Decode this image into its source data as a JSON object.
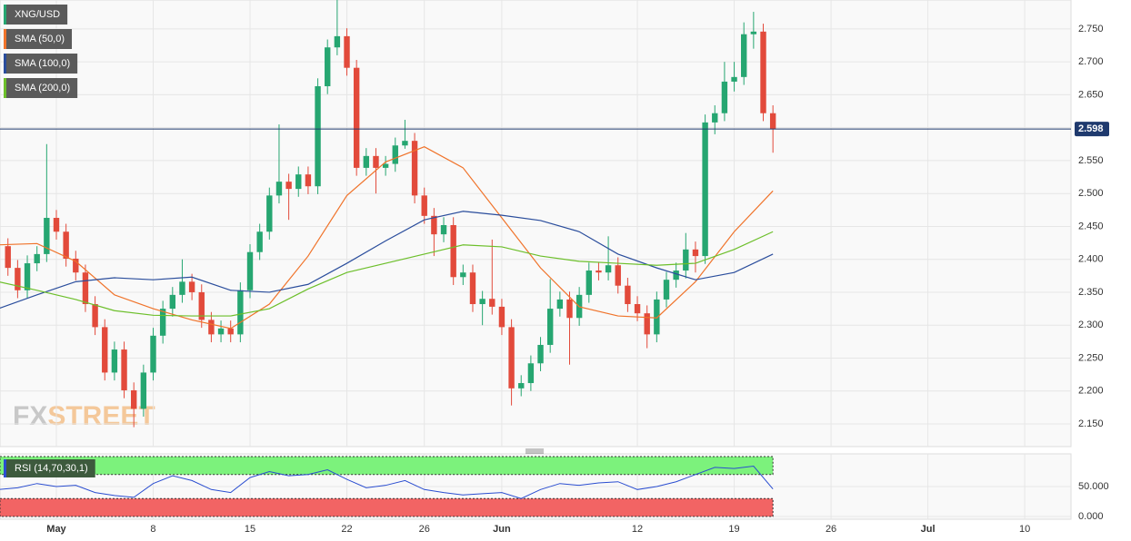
{
  "chart_data": [
    {
      "type": "candlestick",
      "name": "XNG/USD",
      "up_color": "#26a671",
      "down_color": "#e24a3b",
      "watermark": [
        "FX",
        "STREET"
      ],
      "x": [
        -2.5,
        -2,
        -1.5,
        -1,
        -0.5,
        0,
        0.5,
        1,
        1.5,
        2,
        2.5,
        3,
        3.5,
        4,
        4.5,
        5,
        5.5,
        6,
        6.5,
        7,
        7.5,
        8,
        8.5,
        9,
        9.5,
        10,
        10.5,
        11,
        11.5,
        12,
        12.5,
        13,
        13.5,
        14,
        14.5,
        15,
        15.5,
        16,
        16.5,
        17,
        17.5,
        18,
        18.5,
        19,
        19.5,
        20,
        20.5,
        21,
        21.5,
        22,
        22.5,
        23,
        23.5,
        24,
        24.5,
        25,
        25.5,
        26,
        26.5,
        27,
        27.5,
        28,
        28.5,
        29,
        29.5,
        30,
        30.5,
        31,
        31.5,
        32,
        32.5,
        33,
        33.5,
        34,
        34.5,
        35,
        35.5,
        36,
        36.5,
        37
      ],
      "open": [
        2.42,
        2.387,
        2.353,
        2.394,
        2.408,
        2.463,
        2.442,
        2.401,
        2.38,
        2.332,
        2.297,
        2.228,
        2.263,
        2.201,
        2.173,
        2.228,
        2.284,
        2.325,
        2.346,
        2.366,
        2.35,
        2.308,
        2.286,
        2.295,
        2.286,
        2.353,
        2.411,
        2.442,
        2.497,
        2.518,
        2.507,
        2.529,
        2.511,
        2.663,
        2.722,
        2.739,
        2.691,
        2.539,
        2.557,
        2.539,
        2.545,
        2.573,
        2.58,
        2.497,
        2.466,
        2.438,
        2.452,
        2.373,
        2.38,
        2.332,
        2.34,
        2.328,
        2.297,
        2.204,
        2.212,
        2.242,
        2.27,
        2.325,
        2.339,
        2.311,
        2.346,
        2.383,
        2.38,
        2.391,
        2.36,
        2.332,
        2.318,
        2.286,
        2.339,
        2.369,
        2.383,
        2.415,
        2.405,
        2.608,
        2.622,
        2.67,
        2.677,
        2.742,
        2.746,
        2.622
      ],
      "high": [
        2.432,
        2.399,
        2.406,
        2.42,
        2.575,
        2.475,
        2.454,
        2.413,
        2.392,
        2.344,
        2.309,
        2.275,
        2.275,
        2.213,
        2.24,
        2.296,
        2.337,
        2.358,
        2.4,
        2.378,
        2.362,
        2.32,
        2.307,
        2.307,
        2.365,
        2.423,
        2.454,
        2.509,
        2.605,
        2.53,
        2.541,
        2.541,
        2.675,
        2.734,
        2.794,
        2.751,
        2.703,
        2.569,
        2.569,
        2.557,
        2.585,
        2.612,
        2.592,
        2.509,
        2.478,
        2.464,
        2.464,
        2.392,
        2.392,
        2.352,
        2.43,
        2.34,
        2.309,
        2.224,
        2.254,
        2.282,
        2.37,
        2.351,
        2.351,
        2.358,
        2.395,
        2.395,
        2.435,
        2.403,
        2.372,
        2.344,
        2.33,
        2.351,
        2.381,
        2.395,
        2.44,
        2.427,
        2.62,
        2.634,
        2.7,
        2.7,
        2.76,
        2.776,
        2.758,
        2.634
      ],
      "low": [
        2.375,
        2.341,
        2.341,
        2.382,
        2.396,
        2.43,
        2.389,
        2.368,
        2.32,
        2.285,
        2.216,
        2.216,
        2.189,
        2.145,
        2.161,
        2.216,
        2.272,
        2.313,
        2.334,
        2.338,
        2.296,
        2.274,
        2.274,
        2.274,
        2.274,
        2.341,
        2.399,
        2.43,
        2.485,
        2.46,
        2.495,
        2.499,
        2.499,
        2.651,
        2.71,
        2.679,
        2.527,
        2.527,
        2.5,
        2.527,
        2.533,
        2.568,
        2.485,
        2.454,
        2.405,
        2.426,
        2.361,
        2.361,
        2.32,
        2.3,
        2.316,
        2.285,
        2.178,
        2.192,
        2.2,
        2.23,
        2.258,
        2.313,
        2.24,
        2.299,
        2.334,
        2.368,
        2.368,
        2.348,
        2.32,
        2.306,
        2.265,
        2.274,
        2.327,
        2.357,
        2.371,
        2.38,
        2.393,
        2.59,
        2.61,
        2.655,
        2.665,
        2.72,
        2.61,
        2.562
      ],
      "close": [
        2.387,
        2.353,
        2.394,
        2.408,
        2.463,
        2.442,
        2.401,
        2.38,
        2.332,
        2.297,
        2.228,
        2.263,
        2.201,
        2.173,
        2.228,
        2.284,
        2.325,
        2.346,
        2.366,
        2.35,
        2.308,
        2.286,
        2.295,
        2.286,
        2.353,
        2.411,
        2.442,
        2.497,
        2.518,
        2.507,
        2.529,
        2.511,
        2.663,
        2.722,
        2.739,
        2.691,
        2.539,
        2.557,
        2.539,
        2.545,
        2.573,
        2.58,
        2.497,
        2.466,
        2.438,
        2.452,
        2.373,
        2.38,
        2.332,
        2.34,
        2.328,
        2.297,
        2.204,
        2.212,
        2.242,
        2.27,
        2.325,
        2.339,
        2.311,
        2.346,
        2.383,
        2.38,
        2.391,
        2.36,
        2.332,
        2.318,
        2.286,
        2.339,
        2.369,
        2.383,
        2.415,
        2.405,
        2.608,
        2.622,
        2.67,
        2.677,
        2.742,
        2.746,
        2.622,
        2.598
      ],
      "last_price": {
        "value": 2.598,
        "label": "2.598",
        "color": "#1f3a6e"
      },
      "series": [
        {
          "name": "SMA (50,0)",
          "color": "#f0732a",
          "x": [
            -3,
            -1,
            1,
            3,
            5,
            7,
            9,
            11,
            13,
            15,
            17,
            19,
            21,
            23,
            25,
            27,
            29,
            31,
            33,
            35,
            37
          ],
          "values": [
            2.422,
            2.424,
            2.397,
            2.346,
            2.325,
            2.308,
            2.295,
            2.332,
            2.405,
            2.497,
            2.548,
            2.571,
            2.539,
            2.463,
            2.387,
            2.328,
            2.314,
            2.311,
            2.366,
            2.442,
            2.504
          ]
        },
        {
          "name": "SMA (100,0)",
          "color": "#2a4d9c",
          "x": [
            -3,
            -1,
            1,
            3,
            5,
            7,
            9,
            11,
            13,
            15,
            17,
            19,
            21,
            23,
            25,
            27,
            29,
            31,
            33,
            35,
            37
          ],
          "values": [
            2.325,
            2.346,
            2.366,
            2.372,
            2.369,
            2.373,
            2.353,
            2.35,
            2.362,
            2.394,
            2.428,
            2.46,
            2.473,
            2.467,
            2.459,
            2.442,
            2.408,
            2.387,
            2.369,
            2.38,
            2.408
          ]
        },
        {
          "name": "SMA (200,0)",
          "color": "#6cbf2a",
          "x": [
            -3,
            -1,
            1,
            3,
            5,
            7,
            9,
            11,
            13,
            15,
            17,
            19,
            21,
            23,
            25,
            27,
            29,
            31,
            33,
            35,
            37
          ],
          "values": [
            2.366,
            2.353,
            2.339,
            2.322,
            2.315,
            2.314,
            2.314,
            2.325,
            2.355,
            2.38,
            2.394,
            2.408,
            2.422,
            2.419,
            2.405,
            2.397,
            2.394,
            2.391,
            2.394,
            2.415,
            2.442
          ]
        }
      ],
      "xlim": [
        -2.91,
        52.39
      ],
      "ylim": [
        2.1155,
        2.794
      ],
      "yticks": [
        {
          "value": 2.15,
          "label": "2.150"
        },
        {
          "value": 2.2,
          "label": "2.200"
        },
        {
          "value": 2.25,
          "label": "2.250"
        },
        {
          "value": 2.3,
          "label": "2.300"
        },
        {
          "value": 2.35,
          "label": "2.350"
        },
        {
          "value": 2.4,
          "label": "2.400"
        },
        {
          "value": 2.45,
          "label": "2.450"
        },
        {
          "value": 2.5,
          "label": "2.500"
        },
        {
          "value": 2.55,
          "label": "2.550"
        },
        {
          "value": 2.6,
          "label": "2.600"
        },
        {
          "value": 2.65,
          "label": "2.650"
        },
        {
          "value": 2.7,
          "label": "2.700"
        },
        {
          "value": 2.75,
          "label": "2.750"
        }
      ],
      "grid": true
    },
    {
      "type": "line",
      "name": "RSI (14,70,30,1)",
      "color": "#2a4dd0",
      "x": [
        -3,
        -2,
        -1,
        0,
        1,
        2,
        3,
        4,
        5,
        6,
        7,
        8,
        9,
        10,
        11,
        12,
        13,
        14,
        15,
        16,
        17,
        18,
        19,
        20,
        21,
        22,
        23,
        24,
        25,
        26,
        27,
        28,
        29,
        30,
        31,
        32,
        33,
        34,
        35,
        36,
        37
      ],
      "values": [
        45,
        48,
        55,
        50,
        52,
        40,
        35,
        32,
        55,
        68,
        60,
        45,
        40,
        65,
        75,
        68,
        70,
        78,
        62,
        48,
        52,
        60,
        45,
        40,
        36,
        38,
        40,
        30,
        45,
        55,
        52,
        56,
        58,
        45,
        50,
        58,
        70,
        82,
        80,
        84,
        46
      ],
      "bands": [
        {
          "range": [
            70,
            100
          ],
          "color": "#7cf27c"
        },
        {
          "range": [
            0,
            30
          ],
          "color": "#f26464"
        }
      ],
      "xlim": [
        -2.91,
        52.39
      ],
      "ylim": [
        -4.5,
        104.5
      ],
      "yticks": [
        {
          "value": 0,
          "label": "0.000"
        },
        {
          "value": 50,
          "label": "50.000"
        }
      ],
      "xticks": [
        {
          "value": 0,
          "label": "May"
        },
        {
          "value": 5,
          "label": "8"
        },
        {
          "value": 10,
          "label": "15"
        },
        {
          "value": 15,
          "label": "22"
        },
        {
          "value": 19,
          "label": "26"
        },
        {
          "value": 23,
          "label": "Jun"
        },
        {
          "value": 30,
          "label": "12"
        },
        {
          "value": 35,
          "label": "19"
        },
        {
          "value": 40,
          "label": "26"
        },
        {
          "value": 45,
          "label": "Jul"
        },
        {
          "value": 50,
          "label": "10"
        }
      ],
      "grid": true
    }
  ]
}
